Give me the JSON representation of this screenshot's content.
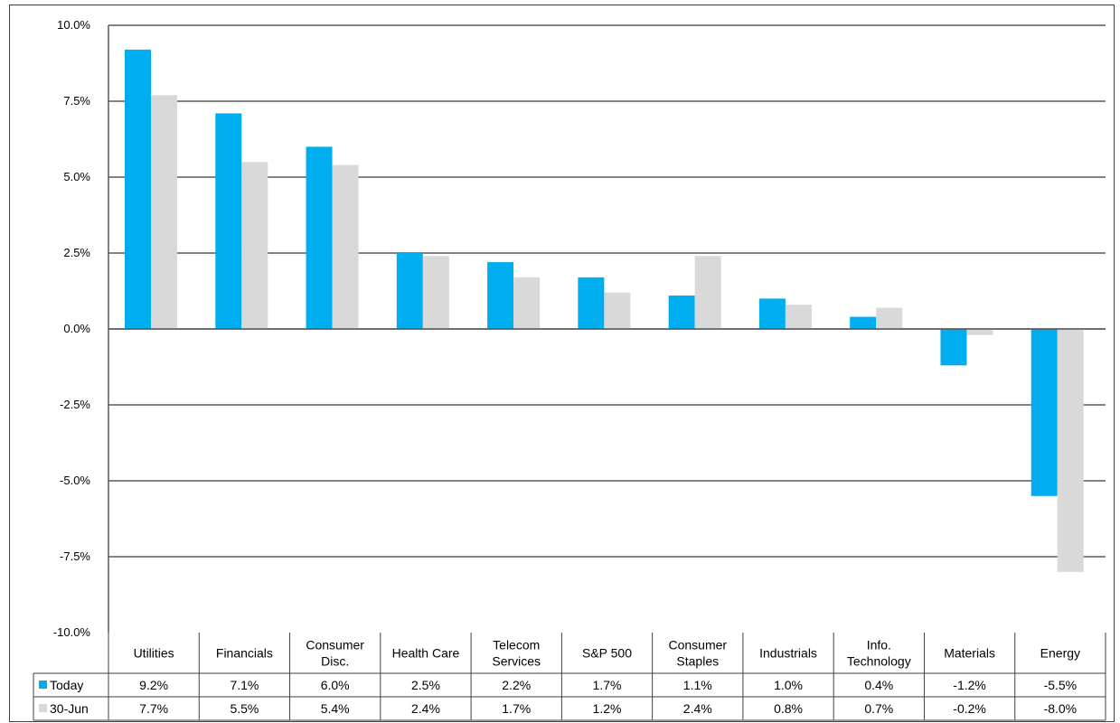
{
  "colors": {
    "today": "#00AEEF",
    "jun30": "#D9D9D9",
    "gridline": "#595959",
    "frame": "#404040",
    "background": "#FFFFFF"
  },
  "chart_data": {
    "type": "bar",
    "title": "",
    "xlabel": "",
    "ylabel": "",
    "ylim": [
      -10.0,
      10.0
    ],
    "yticks": [
      "10.0%",
      "7.5%",
      "5.0%",
      "2.5%",
      "0.0%",
      "-2.5%",
      "-5.0%",
      "-7.5%",
      "-10.0%"
    ],
    "grid": true,
    "legend": "data-table",
    "categories": [
      [
        "Utilities"
      ],
      [
        "Financials"
      ],
      [
        "Consumer",
        "Disc."
      ],
      [
        "Health Care"
      ],
      [
        "Telecom",
        "Services"
      ],
      [
        "S&P 500"
      ],
      [
        "Consumer",
        "Staples"
      ],
      [
        "Industrials"
      ],
      [
        "Info.",
        "Technology"
      ],
      [
        "Materials"
      ],
      [
        "Energy"
      ]
    ],
    "series": [
      {
        "name": "Today",
        "color": "#00AEEF",
        "values": [
          9.2,
          7.1,
          6.0,
          2.5,
          2.2,
          1.7,
          1.1,
          1.0,
          0.4,
          -1.2,
          -5.5
        ],
        "labels": [
          "9.2%",
          "7.1%",
          "6.0%",
          "2.5%",
          "2.2%",
          "1.7%",
          "1.1%",
          "1.0%",
          "0.4%",
          "-1.2%",
          "-5.5%"
        ]
      },
      {
        "name": "30-Jun",
        "color": "#D9D9D9",
        "values": [
          7.7,
          5.5,
          5.4,
          2.4,
          1.7,
          1.2,
          2.4,
          0.8,
          0.7,
          -0.2,
          -8.0
        ],
        "labels": [
          "7.7%",
          "5.5%",
          "5.4%",
          "2.4%",
          "1.7%",
          "1.2%",
          "2.4%",
          "0.8%",
          "0.7%",
          "-0.2%",
          "-8.0%"
        ]
      }
    ]
  }
}
